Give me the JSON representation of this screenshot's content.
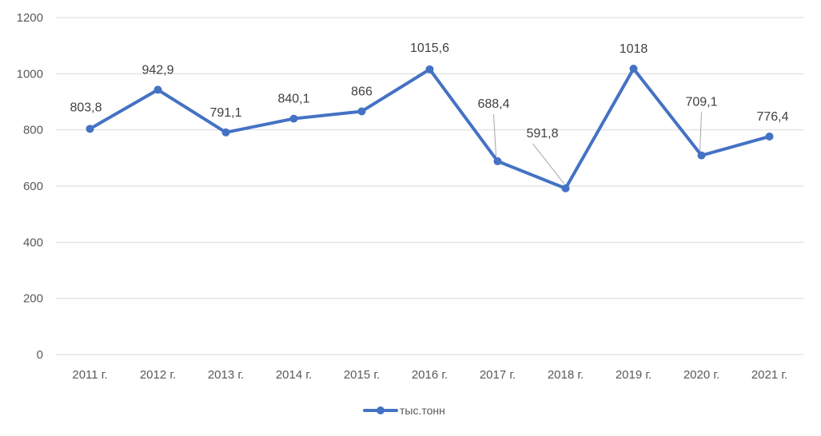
{
  "chart_data": {
    "type": "line",
    "categories": [
      "2011 г.",
      "2012 г.",
      "2013 г.",
      "2014 г.",
      "2015 г.",
      "2016 г.",
      "2017 г.",
      "2018 г.",
      "2019 г.",
      "2020 г.",
      "2021 г."
    ],
    "series": [
      {
        "name": "тыс.тонн",
        "values": [
          803.8,
          942.9,
          791.1,
          840.1,
          866,
          1015.6,
          688.4,
          591.8,
          1018,
          709.1,
          776.4
        ],
        "data_labels": [
          "803,8",
          "942,9",
          "791,1",
          "840,1",
          "866",
          "1015,6",
          "688,4",
          "591,8",
          "1018",
          "709,1",
          "776,4"
        ],
        "color": "#4472C4"
      }
    ],
    "yticks": [
      "0",
      "200",
      "400",
      "600",
      "800",
      "1000",
      "1200"
    ],
    "ylim": [
      0,
      1200
    ],
    "grid": true,
    "legend": "bottom",
    "title": "",
    "xlabel": "",
    "ylabel": ""
  }
}
